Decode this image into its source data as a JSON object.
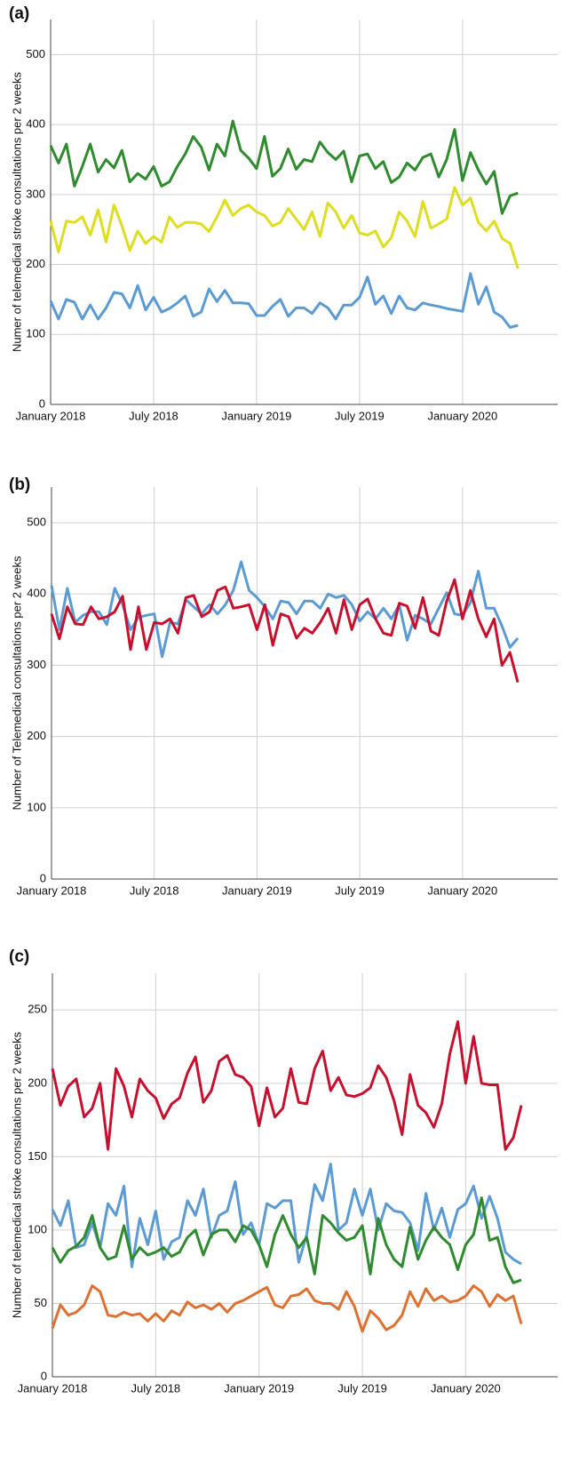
{
  "chart_data": [
    {
      "type": "line",
      "label": "(a)",
      "y_label": "Numer of telemedical stroke consultations per 2 weeks",
      "categories": [
        "January 2018",
        null,
        null,
        null,
        null,
        null,
        null,
        null,
        null,
        null,
        null,
        null,
        null,
        "July 2018",
        null,
        null,
        null,
        null,
        null,
        null,
        null,
        null,
        null,
        null,
        null,
        null,
        "January 2019",
        null,
        null,
        null,
        null,
        null,
        null,
        null,
        null,
        null,
        null,
        null,
        null,
        "July 2019",
        null,
        null,
        null,
        null,
        null,
        null,
        null,
        null,
        null,
        null,
        null,
        null,
        "January 2020",
        null,
        null,
        null,
        null,
        null,
        null,
        null
      ],
      "ylim": [
        0,
        550
      ],
      "yticks": [
        0,
        100,
        200,
        300,
        400,
        500
      ],
      "grid": true,
      "series": [
        {
          "color": "#2e8b2e",
          "values": [
            370,
            345,
            372,
            312,
            340,
            372,
            332,
            350,
            338,
            363,
            318,
            330,
            322,
            340,
            312,
            318,
            340,
            358,
            383,
            368,
            335,
            372,
            355,
            405,
            363,
            352,
            337,
            383,
            326,
            337,
            365,
            336,
            350,
            347,
            375,
            360,
            350,
            362,
            318,
            355,
            358,
            337,
            347,
            317,
            325,
            345,
            335,
            353,
            358,
            325,
            350,
            393,
            320,
            360,
            335,
            315,
            333,
            273,
            298,
            302
          ]
        },
        {
          "color": "#dede1e",
          "values": [
            262,
            218,
            262,
            260,
            268,
            242,
            278,
            232,
            285,
            255,
            220,
            248,
            230,
            240,
            232,
            268,
            253,
            260,
            260,
            258,
            247,
            268,
            292,
            270,
            280,
            285,
            275,
            270,
            255,
            260,
            280,
            265,
            250,
            275,
            240,
            288,
            275,
            252,
            270,
            245,
            242,
            248,
            225,
            238,
            275,
            262,
            240,
            290,
            252,
            258,
            265,
            310,
            285,
            295,
            260,
            248,
            262,
            237,
            230,
            194
          ]
        },
        {
          "color": "#5b9bd5",
          "values": [
            148,
            122,
            150,
            146,
            122,
            142,
            122,
            138,
            160,
            158,
            138,
            170,
            135,
            153,
            132,
            137,
            145,
            155,
            126,
            132,
            165,
            147,
            163,
            145,
            145,
            144,
            127,
            127,
            140,
            150,
            126,
            138,
            138,
            130,
            145,
            138,
            122,
            142,
            142,
            153,
            182,
            143,
            155,
            130,
            155,
            138,
            135,
            145,
            142,
            140,
            137,
            135,
            133,
            187,
            143,
            168,
            132,
            125,
            110,
            113
          ]
        }
      ]
    },
    {
      "type": "line",
      "label": "(b)",
      "y_label": "Number of Telemedical consultations per 2 weeks",
      "categories": [
        "January 2018",
        null,
        null,
        null,
        null,
        null,
        null,
        null,
        null,
        null,
        null,
        null,
        null,
        "July 2018",
        null,
        null,
        null,
        null,
        null,
        null,
        null,
        null,
        null,
        null,
        null,
        null,
        "January 2019",
        null,
        null,
        null,
        null,
        null,
        null,
        null,
        null,
        null,
        null,
        null,
        null,
        "July 2019",
        null,
        null,
        null,
        null,
        null,
        null,
        null,
        null,
        null,
        null,
        null,
        null,
        "January 2020",
        null,
        null,
        null,
        null,
        null,
        null,
        null
      ],
      "ylim": [
        0,
        550
      ],
      "yticks": [
        0,
        100,
        200,
        300,
        400,
        500
      ],
      "grid": true,
      "series": [
        {
          "color": "#5b9bd5",
          "values": [
            412,
            350,
            408,
            360,
            370,
            375,
            375,
            357,
            408,
            385,
            350,
            367,
            370,
            372,
            312,
            360,
            358,
            392,
            382,
            372,
            385,
            372,
            385,
            405,
            445,
            405,
            395,
            382,
            365,
            390,
            388,
            372,
            390,
            390,
            380,
            400,
            395,
            398,
            385,
            362,
            375,
            365,
            380,
            365,
            385,
            335,
            370,
            365,
            358,
            380,
            402,
            372,
            370,
            388,
            432,
            380,
            380,
            355,
            325,
            338
          ]
        },
        {
          "color": "#c8102e",
          "values": [
            372,
            337,
            382,
            358,
            357,
            382,
            365,
            368,
            375,
            397,
            322,
            382,
            322,
            360,
            358,
            365,
            345,
            395,
            398,
            368,
            375,
            405,
            410,
            380,
            382,
            385,
            350,
            385,
            328,
            372,
            368,
            338,
            352,
            345,
            360,
            380,
            345,
            392,
            350,
            385,
            393,
            365,
            345,
            342,
            387,
            383,
            352,
            395,
            348,
            342,
            390,
            420,
            365,
            405,
            365,
            340,
            365,
            300,
            318,
            276
          ]
        }
      ]
    },
    {
      "type": "line",
      "label": "(c)",
      "y_label": "Number of telemedical stroke consultations per 2 weeks",
      "categories": [
        "January 2018",
        null,
        null,
        null,
        null,
        null,
        null,
        null,
        null,
        null,
        null,
        null,
        null,
        "July 2018",
        null,
        null,
        null,
        null,
        null,
        null,
        null,
        null,
        null,
        null,
        null,
        null,
        "January 2019",
        null,
        null,
        null,
        null,
        null,
        null,
        null,
        null,
        null,
        null,
        null,
        null,
        "July 2019",
        null,
        null,
        null,
        null,
        null,
        null,
        null,
        null,
        null,
        null,
        null,
        null,
        "January 2020",
        null,
        null,
        null,
        null,
        null,
        null,
        null
      ],
      "ylim": [
        0,
        275
      ],
      "yticks": [
        0,
        50,
        100,
        150,
        200,
        250
      ],
      "grid": true,
      "series": [
        {
          "color": "#c8102e",
          "values": [
            210,
            185,
            198,
            203,
            177,
            183,
            200,
            155,
            210,
            198,
            177,
            203,
            195,
            190,
            176,
            186,
            190,
            207,
            218,
            187,
            195,
            215,
            219,
            206,
            204,
            198,
            171,
            197,
            177,
            183,
            210,
            187,
            186,
            210,
            222,
            195,
            204,
            192,
            191,
            193,
            197,
            212,
            204,
            188,
            165,
            206,
            185,
            180,
            170,
            186,
            220,
            242,
            200,
            232,
            200,
            199,
            199,
            155,
            163,
            185
          ]
        },
        {
          "color": "#5b9bd5",
          "values": [
            114,
            103,
            120,
            88,
            90,
            105,
            88,
            118,
            110,
            130,
            75,
            108,
            90,
            113,
            80,
            92,
            95,
            120,
            110,
            128,
            95,
            110,
            113,
            133,
            97,
            105,
            90,
            118,
            115,
            120,
            120,
            78,
            97,
            131,
            120,
            145,
            100,
            105,
            128,
            110,
            128,
            100,
            118,
            113,
            112,
            105,
            86,
            125,
            100,
            115,
            95,
            114,
            118,
            130,
            108,
            123,
            108,
            85,
            80,
            77
          ]
        },
        {
          "color": "#2e8b2e",
          "values": [
            88,
            78,
            86,
            89,
            95,
            110,
            88,
            80,
            82,
            103,
            80,
            88,
            83,
            85,
            88,
            82,
            85,
            95,
            100,
            83,
            97,
            100,
            100,
            92,
            103,
            100,
            90,
            75,
            97,
            110,
            97,
            88,
            95,
            70,
            110,
            105,
            98,
            93,
            95,
            103,
            70,
            108,
            90,
            80,
            75,
            102,
            80,
            93,
            102,
            95,
            90,
            73,
            90,
            97,
            122,
            93,
            95,
            75,
            64,
            66
          ]
        },
        {
          "color": "#e07030",
          "values": [
            33,
            49,
            42,
            44,
            49,
            62,
            58,
            42,
            41,
            44,
            42,
            43,
            38,
            43,
            38,
            45,
            42,
            51,
            47,
            49,
            46,
            50,
            44,
            50,
            52,
            55,
            58,
            61,
            49,
            47,
            55,
            56,
            60,
            52,
            50,
            50,
            46,
            58,
            48,
            31,
            45,
            40,
            32,
            35,
            42,
            58,
            48,
            60,
            52,
            55,
            51,
            52,
            55,
            62,
            58,
            48,
            56,
            52,
            55,
            36
          ]
        }
      ]
    }
  ]
}
